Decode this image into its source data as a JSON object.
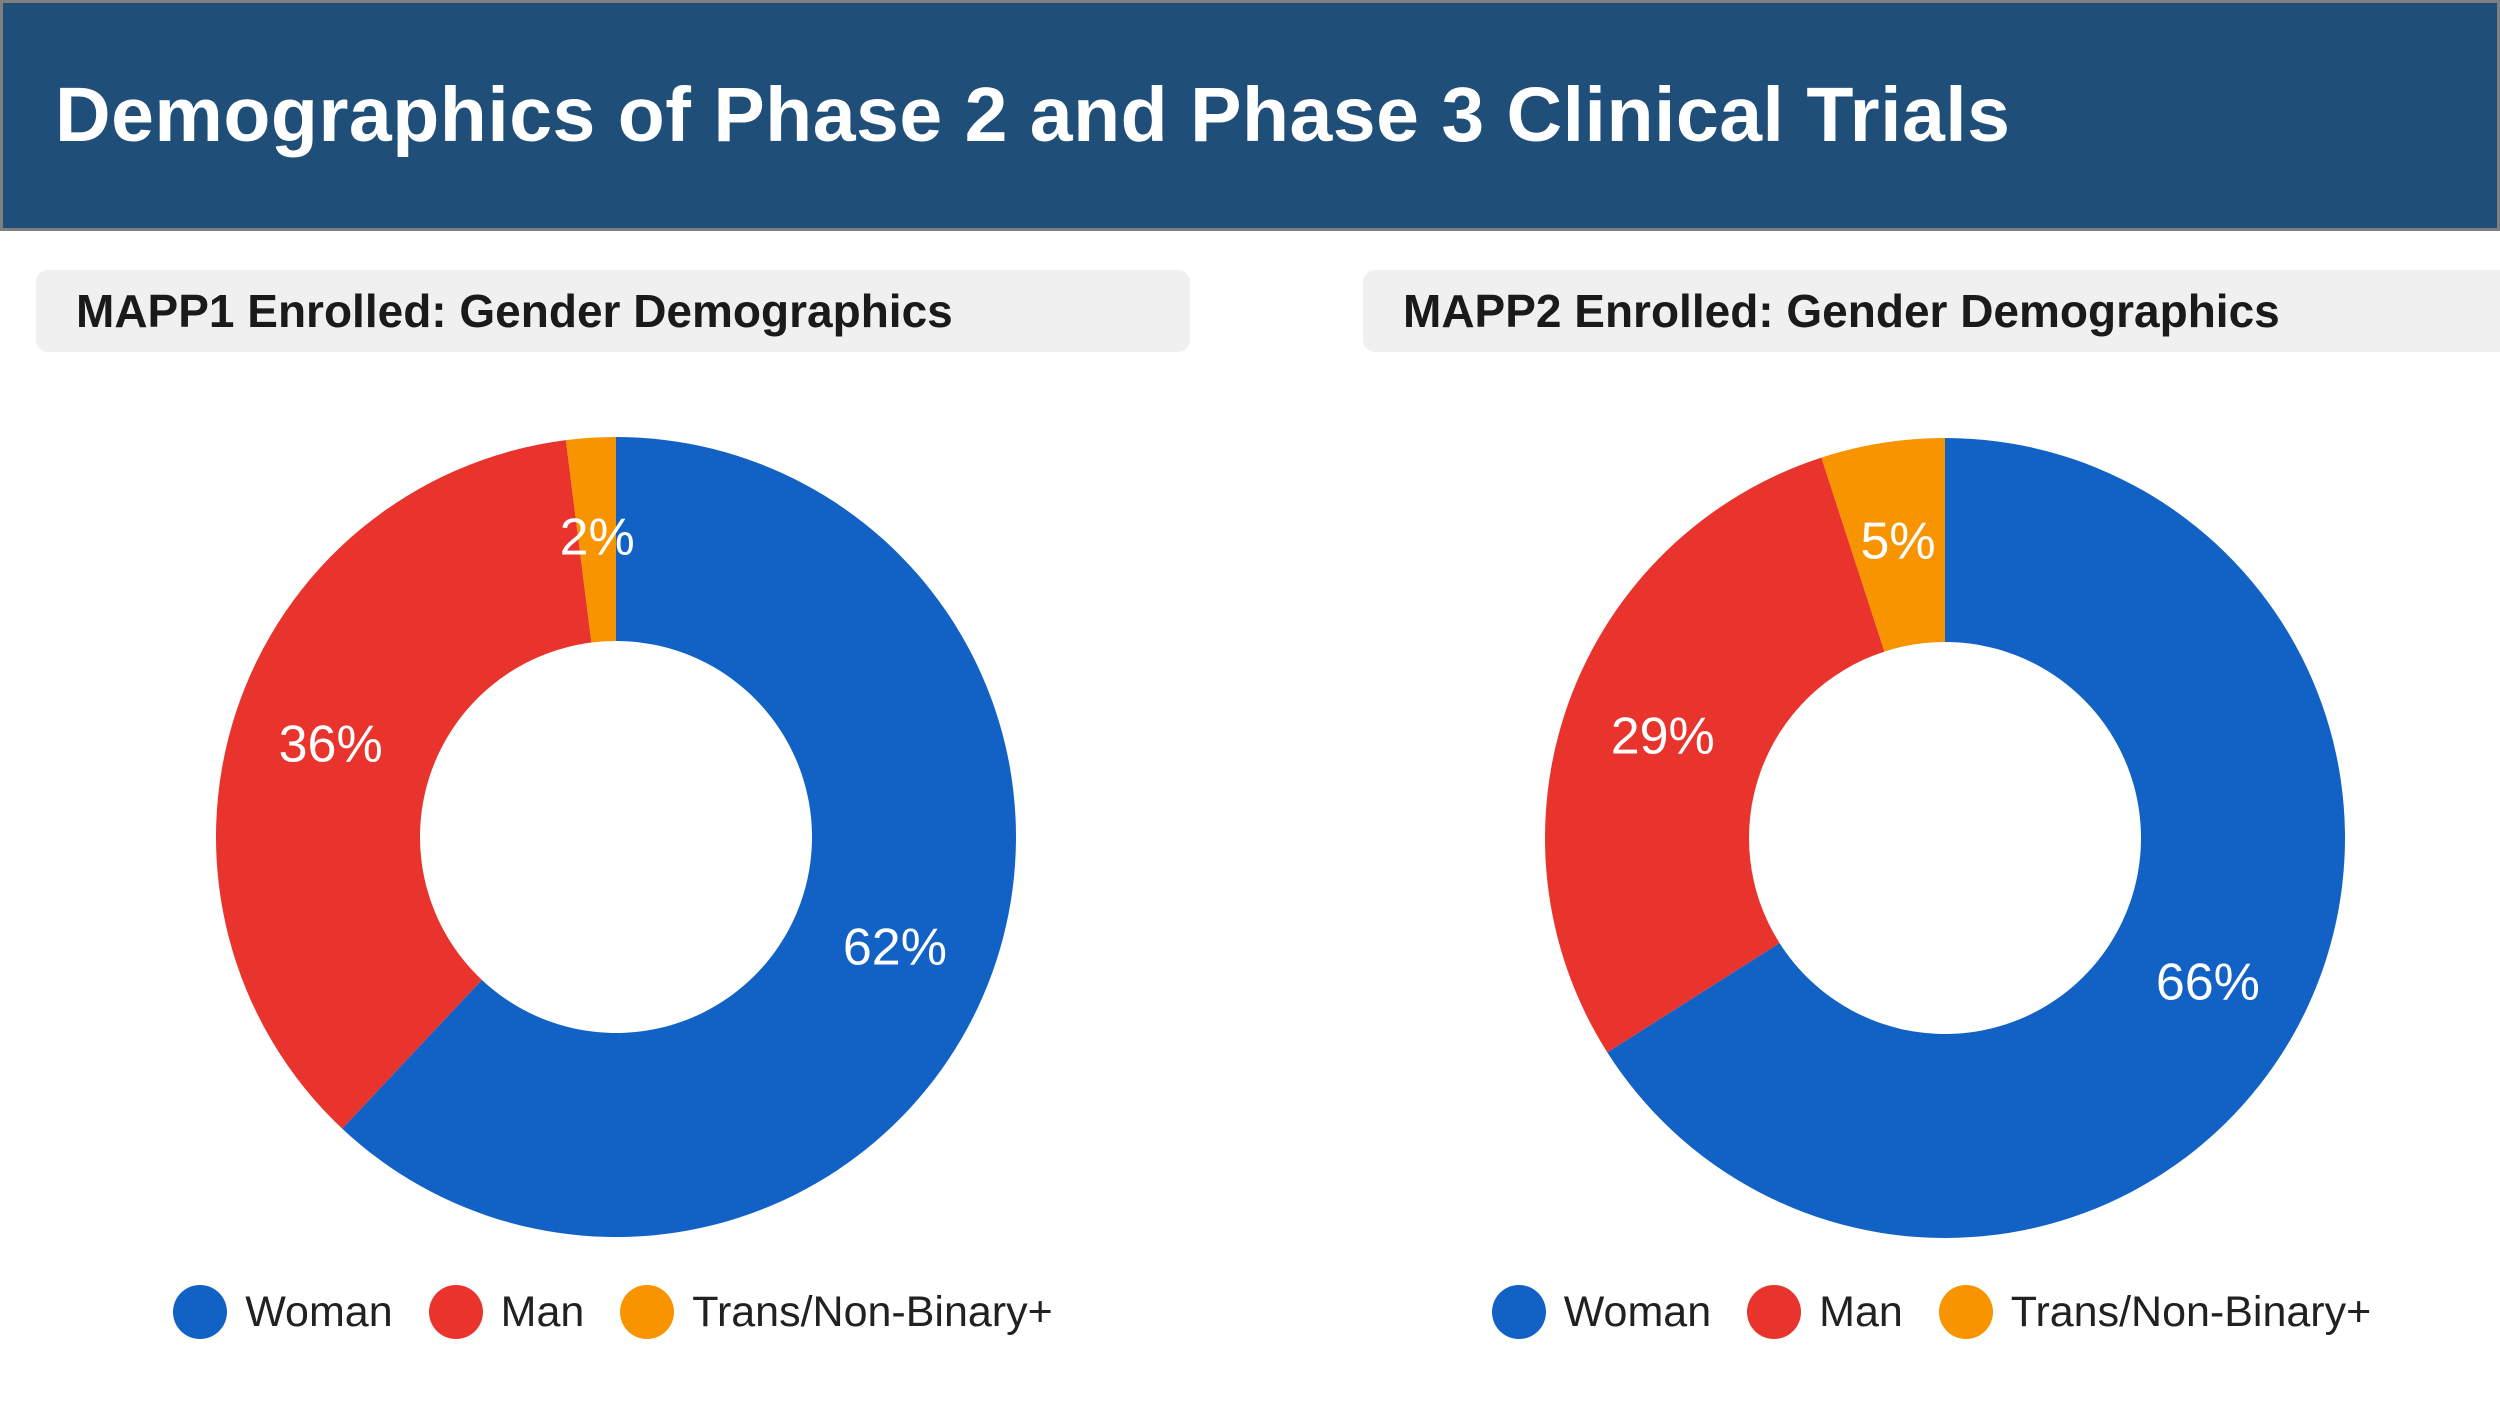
{
  "header": {
    "title": "Demographics of Phase 2 and Phase 3 Clinical Trials"
  },
  "theme": {
    "banner_bg": "#1F4E79",
    "banner_border": "#7F7F7F",
    "banner_text": "#FFFFFF",
    "panel_header_bg": "#F0F0F0",
    "panel_header_text": "#1A1A1A",
    "page_bg": "#FFFFFF",
    "slice_label_color": "#FFFFFF",
    "legend_text_color": "#212121",
    "series_colors": {
      "woman": "#1262C6",
      "man": "#E8342C",
      "trans_non_binary": "#F79400"
    }
  },
  "chart_data": [
    {
      "type": "pie",
      "subtype": "donut",
      "title": "MAPP1 Enrolled: Gender Demographics",
      "categories": [
        "Woman",
        "Man",
        "Trans/Non-Binary+"
      ],
      "values": [
        62,
        36,
        2
      ],
      "data_labels": [
        "62%",
        "36%",
        "2%"
      ],
      "colors": [
        "#1262C6",
        "#E8342C",
        "#F79400"
      ],
      "hole_ratio": 0.49,
      "start_angle": 0,
      "direction": "clockwise",
      "legend_position": "bottom",
      "grid": false
    },
    {
      "type": "pie",
      "subtype": "donut",
      "title": "MAPP2 Enrolled: Gender Demographics",
      "categories": [
        "Woman",
        "Man",
        "Trans/Non-Binary+"
      ],
      "values": [
        66,
        29,
        5
      ],
      "data_labels": [
        "66%",
        "29%",
        "5%"
      ],
      "colors": [
        "#1262C6",
        "#E8342C",
        "#F79400"
      ],
      "hole_ratio": 0.49,
      "start_angle": 0,
      "direction": "clockwise",
      "legend_position": "bottom",
      "grid": false
    }
  ]
}
